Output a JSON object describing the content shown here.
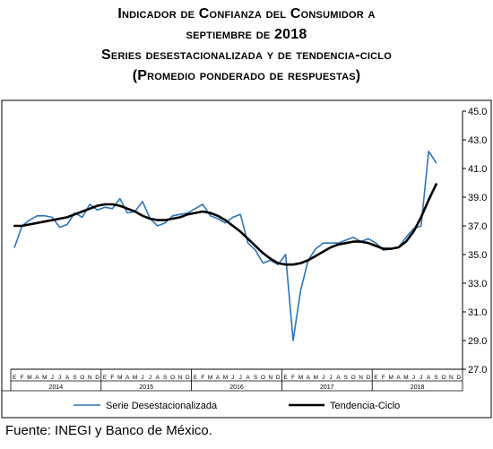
{
  "titles": {
    "line1": "Indicador de Confianza del Consumidor a",
    "line2": "septiembre de 2018",
    "line3": "Series desestacionalizada y de tendencia-ciclo",
    "line4": "(Promedio ponderado de respuestas)"
  },
  "source": "Fuente: INEGI y Banco de México.",
  "colors": {
    "seasonal": "#2e75b6",
    "trend": "#000000",
    "frame": "#000000"
  },
  "chart_data": {
    "type": "line",
    "title": "",
    "ylim": [
      27.0,
      45.0
    ],
    "yticks": [
      "45.0",
      "43.0",
      "41.0",
      "39.0",
      "37.0",
      "35.0",
      "33.0",
      "31.0",
      "29.0",
      "27.0"
    ],
    "y_axis_side": "right",
    "grid": false,
    "month_labels": [
      "E",
      "F",
      "M",
      "A",
      "M",
      "J",
      "J",
      "A",
      "S",
      "O",
      "N",
      "D"
    ],
    "years": [
      "2014",
      "2015",
      "2016",
      "2017",
      "2018"
    ],
    "legend_position": "bottom",
    "x": [
      "2014-01",
      "2014-02",
      "2014-03",
      "2014-04",
      "2014-05",
      "2014-06",
      "2014-07",
      "2014-08",
      "2014-09",
      "2014-10",
      "2014-11",
      "2014-12",
      "2015-01",
      "2015-02",
      "2015-03",
      "2015-04",
      "2015-05",
      "2015-06",
      "2015-07",
      "2015-08",
      "2015-09",
      "2015-10",
      "2015-11",
      "2015-12",
      "2016-01",
      "2016-02",
      "2016-03",
      "2016-04",
      "2016-05",
      "2016-06",
      "2016-07",
      "2016-08",
      "2016-09",
      "2016-10",
      "2016-11",
      "2016-12",
      "2017-01",
      "2017-02",
      "2017-03",
      "2017-04",
      "2017-05",
      "2017-06",
      "2017-07",
      "2017-08",
      "2017-09",
      "2017-10",
      "2017-11",
      "2017-12",
      "2018-01",
      "2018-02",
      "2018-03",
      "2018-04",
      "2018-05",
      "2018-06",
      "2018-07",
      "2018-08",
      "2018-09"
    ],
    "series": [
      {
        "name": "Serie Desestacionalizada",
        "values": [
          35.5,
          37.0,
          37.4,
          37.7,
          37.7,
          37.6,
          36.9,
          37.1,
          37.9,
          37.6,
          38.5,
          38.1,
          38.3,
          38.2,
          38.9,
          37.9,
          38.0,
          38.7,
          37.5,
          37.0,
          37.2,
          37.7,
          37.8,
          37.9,
          38.2,
          38.5,
          37.7,
          37.5,
          37.2,
          37.6,
          37.8,
          35.8,
          35.3,
          34.4,
          34.6,
          34.3,
          35.0,
          29.0,
          32.5,
          34.6,
          35.4,
          35.8,
          35.8,
          35.8,
          36.0,
          36.2,
          35.9,
          36.1,
          35.8,
          35.3,
          35.4,
          35.5,
          36.2,
          36.8,
          37.0,
          42.2,
          41.4
        ]
      },
      {
        "name": "Tendencia-Ciclo",
        "values": [
          37.0,
          37.0,
          37.1,
          37.2,
          37.3,
          37.4,
          37.5,
          37.6,
          37.8,
          38.0,
          38.2,
          38.4,
          38.5,
          38.5,
          38.4,
          38.2,
          38.0,
          37.7,
          37.5,
          37.4,
          37.4,
          37.5,
          37.6,
          37.8,
          37.9,
          38.0,
          37.9,
          37.7,
          37.4,
          37.0,
          36.6,
          36.1,
          35.6,
          35.1,
          34.7,
          34.4,
          34.3,
          34.3,
          34.4,
          34.6,
          34.9,
          35.2,
          35.5,
          35.7,
          35.8,
          35.9,
          35.9,
          35.8,
          35.6,
          35.4,
          35.4,
          35.5,
          35.9,
          36.6,
          37.6,
          38.8,
          39.9
        ]
      }
    ]
  }
}
